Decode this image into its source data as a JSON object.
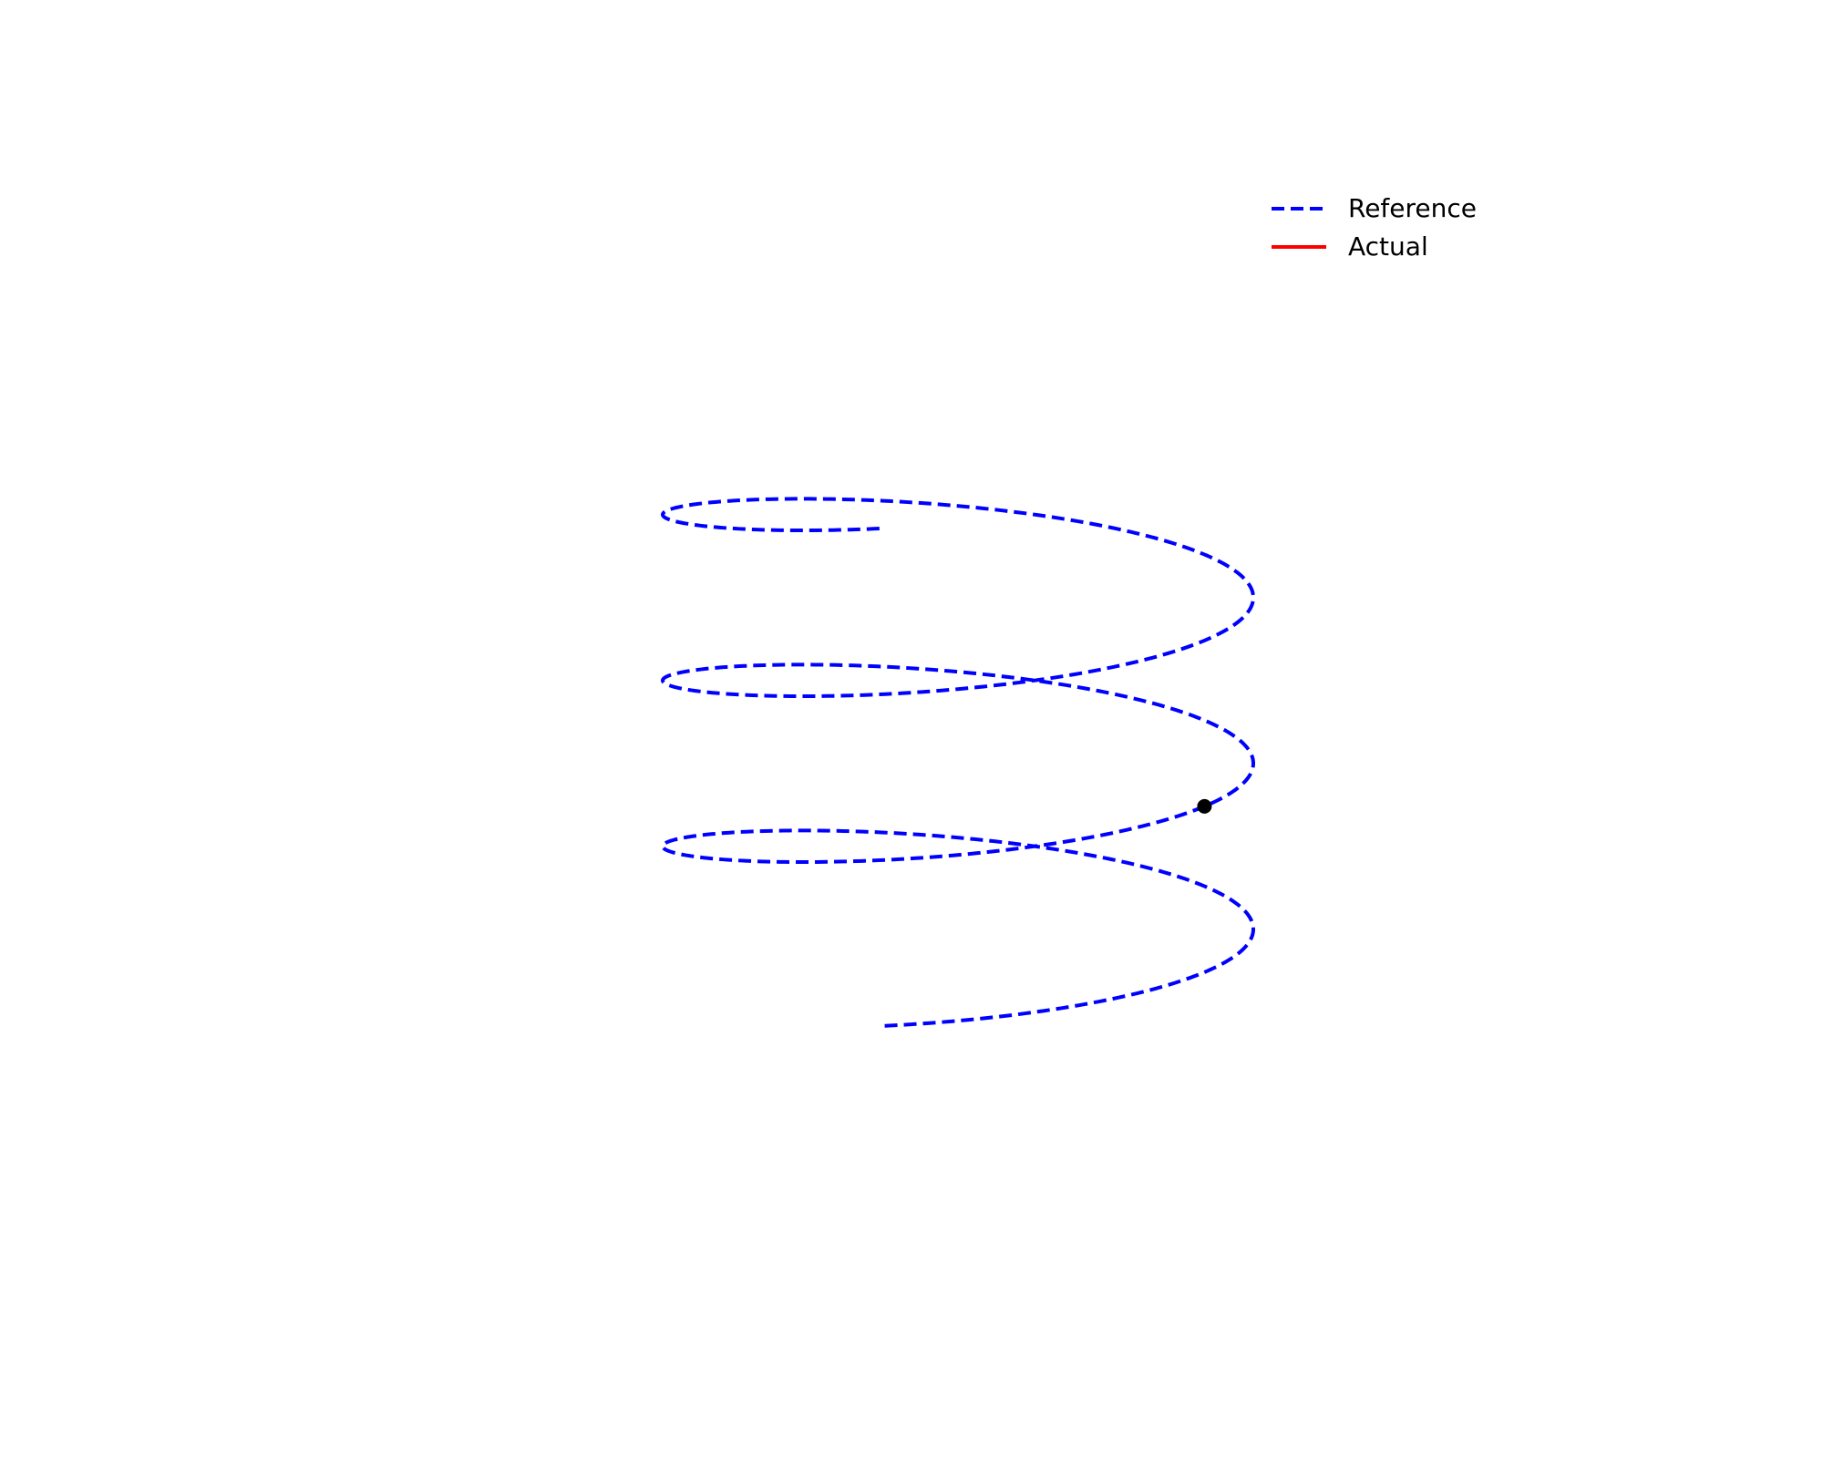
{
  "chart_data": {
    "type": "line",
    "projection": "3d",
    "axes_visible": false,
    "grid": false,
    "legend_placement": "top-right",
    "series": [
      {
        "name": "Reference",
        "style": "dashed",
        "color": "#0000ff",
        "curve": "helix",
        "turns": 3,
        "start_top": true
      },
      {
        "name": "Actual",
        "style": "solid",
        "color": "#ff0000",
        "points": []
      }
    ],
    "current_position": {
      "color": "#000000",
      "fraction_along_reference": 0.6
    }
  }
}
